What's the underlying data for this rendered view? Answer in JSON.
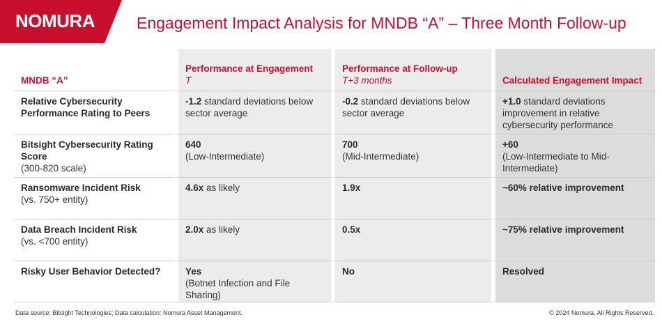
{
  "header": {
    "logo": "NOMURA",
    "title": "Engagement Impact Analysis for MNDB “A” – Three Month Follow-up"
  },
  "table": {
    "columns": [
      {
        "title": "MNDB “A”"
      },
      {
        "title": "Performance at Engagement",
        "subtitle": "T"
      },
      {
        "title": "Performance at Follow-up",
        "subtitle": "T+3 months"
      },
      {
        "title": "Calculated Engagement Impact"
      }
    ],
    "rows": [
      [
        {
          "bold": "Relative Cybersecurity Performance Rating to Peers"
        },
        {
          "bold": "-1.2",
          "text": "standard deviations below sector average"
        },
        {
          "bold": "-0.2",
          "text": "standard deviations below sector average"
        },
        {
          "bold": "+1.0",
          "text": "standard deviations improvement in relative cybersecurity performance"
        }
      ],
      [
        {
          "bold": "Bitsight Cybersecurity Rating Score",
          "sub": "(300-820 scale)"
        },
        {
          "bold": "640",
          "sub": "(Low-Intermediate)"
        },
        {
          "bold": "700",
          "sub": "(Mid-Intermediate)"
        },
        {
          "bold": "+60",
          "sub": "(Low-Intermediate to Mid-Intermediate)"
        }
      ],
      [
        {
          "bold": "Ransomware Incident Risk",
          "sub": "(vs. 750+ entity)"
        },
        {
          "bold": "4.6x",
          "text": "as likely"
        },
        {
          "bold": "1.9x"
        },
        {
          "bold": "~60% relative improvement"
        }
      ],
      [
        {
          "bold": "Data Breach Incident Risk",
          "sub": "(vs. <700 entity)"
        },
        {
          "bold": "2.0x",
          "text": "as likely"
        },
        {
          "bold": "0.5x"
        },
        {
          "bold": "~75% relative improvement"
        }
      ],
      [
        {
          "bold": "Risky User Behavior Detected?"
        },
        {
          "bold": "Yes",
          "sub": "(Botnet Infection and File Sharing)"
        },
        {
          "bold": "No"
        },
        {
          "bold": "Resolved"
        }
      ]
    ]
  },
  "footer": {
    "source": "Data source: Bitsight Technologies; Data calculation: Nomura Asset Management.",
    "copyright": "© 2024 Nomura. All Rights Reserved."
  }
}
